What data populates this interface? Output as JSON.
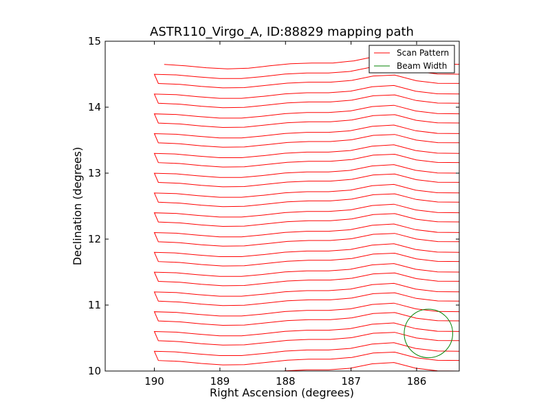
{
  "chart_data": {
    "type": "line",
    "title": "ASTR110_Virgo_A, ID:88829 mapping path",
    "xlabel": "Right Ascension (degrees)",
    "ylabel": "Declination (degrees)",
    "xlim": [
      190.75,
      185.35
    ],
    "ylim": [
      10,
      15
    ],
    "x_ticks": [
      190,
      189,
      188,
      187,
      186
    ],
    "y_ticks": [
      10,
      11,
      12,
      13,
      14,
      15
    ],
    "x_tick_labels": [
      "190",
      "189",
      "188",
      "187",
      "186"
    ],
    "y_tick_labels": [
      "10",
      "11",
      "12",
      "13",
      "14",
      "15"
    ],
    "grid": false,
    "legend_position": "top-right",
    "series": [
      {
        "name": "Scan Pattern",
        "color": "#ff0000",
        "legend_label": "Scan Pattern",
        "scan": {
          "n_legs": 17,
          "dec_start": 10.15,
          "dec_step": 0.3,
          "west_ra": 190.0,
          "east_ra": 185.35,
          "first_leg_start_ra": 189.85,
          "first_leg_dec": 14.65
        }
      },
      {
        "name": "Beam Width",
        "color": "#008000",
        "legend_label": "Beam Width",
        "beam": {
          "center_ra": 185.82,
          "center_dec": 10.57,
          "radius_deg": 0.37
        }
      }
    ]
  }
}
